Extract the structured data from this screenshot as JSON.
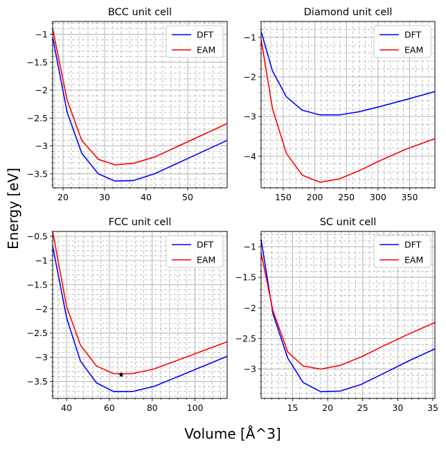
{
  "figure": {
    "ylabel": "Energy [eV]",
    "xlabel": "Volume [Å^3]"
  },
  "colors": {
    "dft": "#0000ff",
    "eam": "#ff0000",
    "grid": "#b0b0b0"
  },
  "chart_data": [
    {
      "type": "line",
      "title": "BCC unit cell",
      "xlim": [
        17.5,
        59.5
      ],
      "ylim": [
        -3.75,
        -0.77
      ],
      "xticks": [
        20,
        30,
        40,
        50
      ],
      "yticks": [
        -1.0,
        -1.5,
        -2.0,
        -2.5,
        -3.0,
        -3.5
      ],
      "xminor": 2,
      "yminor": 0.1,
      "grid": true,
      "legend": "top-right",
      "series": [
        {
          "name": "DFT",
          "color": "#0000ff",
          "x": [
            17.5,
            21.0,
            24.5,
            28.5,
            32.5,
            37.0,
            42.0,
            59.5
          ],
          "y": [
            -1.05,
            -2.4,
            -3.13,
            -3.5,
            -3.63,
            -3.62,
            -3.5,
            -2.9
          ]
        },
        {
          "name": "EAM",
          "color": "#ff0000",
          "x": [
            17.5,
            21.0,
            24.5,
            28.5,
            32.5,
            37.0,
            42.0,
            59.5
          ],
          "y": [
            -0.9,
            -2.18,
            -2.9,
            -3.24,
            -3.34,
            -3.31,
            -3.2,
            -2.6
          ]
        }
      ]
    },
    {
      "type": "line",
      "title": "Diamond unit cell",
      "xlim": [
        115,
        390
      ],
      "ylim": [
        -4.8,
        -0.6
      ],
      "xticks": [
        150,
        200,
        250,
        300,
        350
      ],
      "yticks": [
        -1,
        -2,
        -3,
        -4
      ],
      "xminor": 10,
      "yminor": 0.2,
      "grid": true,
      "legend": "top-right",
      "series": [
        {
          "name": "DFT",
          "color": "#0000ff",
          "x": [
            115,
            133,
            155,
            180,
            208,
            238,
            270,
            305,
            345,
            390
          ],
          "y": [
            -0.85,
            -1.85,
            -2.5,
            -2.84,
            -2.96,
            -2.96,
            -2.88,
            -2.74,
            -2.57,
            -2.37
          ]
        },
        {
          "name": "EAM",
          "color": "#ff0000",
          "x": [
            115,
            133,
            155,
            180,
            208,
            238,
            270,
            305,
            345,
            390
          ],
          "y": [
            -1.05,
            -2.8,
            -3.93,
            -4.48,
            -4.66,
            -4.58,
            -4.37,
            -4.1,
            -3.82,
            -3.56
          ]
        }
      ]
    },
    {
      "type": "line",
      "title": "FCC unit cell",
      "xlim": [
        33.5,
        115
      ],
      "ylim": [
        -3.85,
        -0.4
      ],
      "xticks": [
        40,
        60,
        80,
        100
      ],
      "yticks": [
        -0.5,
        -1.0,
        -1.5,
        -2.0,
        -2.5,
        -3.0,
        -3.5
      ],
      "xminor": 4,
      "yminor": 0.1,
      "grid": true,
      "legend": "top-right",
      "marker": {
        "x": 65.5,
        "y": -3.36,
        "symbol": "star"
      },
      "series": [
        {
          "name": "DFT",
          "color": "#0000ff",
          "x": [
            33.5,
            40,
            46.5,
            54,
            62,
            70.5,
            81,
            115
          ],
          "y": [
            -0.7,
            -2.18,
            -3.08,
            -3.53,
            -3.71,
            -3.71,
            -3.6,
            -2.98
          ]
        },
        {
          "name": "EAM",
          "color": "#ff0000",
          "x": [
            33.5,
            40,
            46.5,
            54,
            62,
            70.5,
            81,
            115
          ],
          "y": [
            -0.4,
            -1.95,
            -2.75,
            -3.18,
            -3.34,
            -3.34,
            -3.24,
            -2.68
          ]
        }
      ]
    },
    {
      "type": "line",
      "title": "SC unit cell",
      "xlim": [
        10.5,
        35.3
      ],
      "ylim": [
        -3.48,
        -0.75
      ],
      "xticks": [
        15,
        20,
        25,
        30,
        35
      ],
      "yticks": [
        -1.0,
        -1.5,
        -2.0,
        -2.5,
        -3.0
      ],
      "xminor": 1,
      "yminor": 0.1,
      "grid": true,
      "legend": "top-right",
      "series": [
        {
          "name": "DFT",
          "color": "#0000ff",
          "x": [
            10.5,
            12.2,
            14.3,
            16.5,
            19.0,
            21.8,
            24.8,
            28.0,
            31.5,
            35.3
          ],
          "y": [
            -0.88,
            -2.1,
            -2.82,
            -3.22,
            -3.37,
            -3.36,
            -3.25,
            -3.07,
            -2.87,
            -2.67
          ]
        },
        {
          "name": "EAM",
          "color": "#ff0000",
          "x": [
            10.5,
            12.2,
            14.3,
            16.5,
            19.0,
            21.8,
            24.8,
            28.0,
            31.5,
            35.3
          ],
          "y": [
            -1.1,
            -2.05,
            -2.72,
            -2.95,
            -3.0,
            -2.94,
            -2.8,
            -2.62,
            -2.43,
            -2.24
          ]
        }
      ]
    }
  ]
}
